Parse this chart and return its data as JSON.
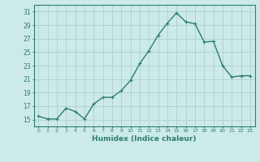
{
  "x": [
    0,
    1,
    2,
    3,
    4,
    5,
    6,
    7,
    8,
    9,
    10,
    11,
    12,
    13,
    14,
    15,
    16,
    17,
    18,
    19,
    20,
    21,
    22,
    23
  ],
  "y": [
    15.5,
    15.1,
    15.1,
    16.7,
    16.2,
    15.1,
    17.3,
    18.3,
    18.3,
    19.3,
    20.8,
    23.3,
    25.2,
    27.5,
    29.3,
    30.8,
    29.5,
    29.2,
    26.5,
    26.6,
    23.0,
    21.3,
    21.5,
    21.5
  ],
  "xlabel": "Humidex (Indice chaleur)",
  "ylim": [
    14,
    32
  ],
  "xlim": [
    -0.5,
    23.5
  ],
  "yticks": [
    15,
    17,
    19,
    21,
    23,
    25,
    27,
    29,
    31
  ],
  "xticks": [
    0,
    1,
    2,
    3,
    4,
    5,
    6,
    7,
    8,
    9,
    10,
    11,
    12,
    13,
    14,
    15,
    16,
    17,
    18,
    19,
    20,
    21,
    22,
    23
  ],
  "line_color": "#2d7d6f",
  "bg_color": "#cceaea",
  "grid_color": "#b0cece",
  "line_width": 1.0,
  "marker_size": 2.5
}
